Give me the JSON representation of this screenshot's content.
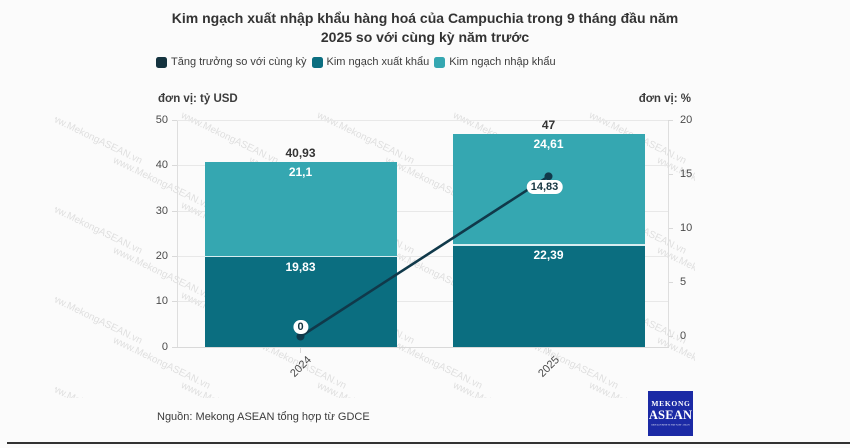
{
  "title": "Kim ngạch xuất nhập khẩu hàng hoá của Campuchia trong 9 tháng đầu năm 2025 so với cùng kỳ năm trước",
  "legend": {
    "items": [
      {
        "label": "Tăng trưởng so với cùng kỳ",
        "color": "#14333f"
      },
      {
        "label": "Kim ngạch xuất khẩu",
        "color": "#0b6e80"
      },
      {
        "label": "Kim ngạch nhập khẩu",
        "color": "#35a7b1"
      }
    ]
  },
  "axes": {
    "left_caption": "đơn vị: tỷ USD",
    "right_caption": "đơn vị: %",
    "left_ticks": [
      0,
      10,
      20,
      30,
      40,
      50
    ],
    "right_ticks": [
      0,
      5,
      10,
      15,
      20
    ]
  },
  "chart_data": {
    "type": "bar",
    "subtype": "stacked-bar-with-line",
    "title": "Kim ngạch xuất nhập khẩu hàng hoá của Campuchia trong 9 tháng đầu năm 2025 so với cùng kỳ năm trước",
    "categories": [
      "2024",
      "2025"
    ],
    "series": [
      {
        "name": "Kim ngạch xuất khẩu",
        "type": "bar",
        "axis": "left",
        "color": "#0b6e80",
        "values": [
          19.83,
          22.39
        ],
        "labels": [
          "19,83",
          "22,39"
        ]
      },
      {
        "name": "Kim ngạch nhập khẩu",
        "type": "bar",
        "axis": "left",
        "color": "#35a7b1",
        "values": [
          21.1,
          24.61
        ],
        "labels": [
          "21,1",
          "24,61"
        ]
      },
      {
        "name": "Tăng trưởng so với cùng kỳ",
        "type": "line",
        "axis": "right",
        "color": "#10394a",
        "values": [
          0,
          14.83
        ],
        "labels": [
          "0",
          "14,83"
        ]
      }
    ],
    "totals": {
      "values": [
        40.93,
        47
      ],
      "labels": [
        "40,93",
        "47"
      ]
    },
    "xlabel": "",
    "ylabel_left": "đơn vị: tỷ USD",
    "ylabel_right": "đơn vị: %",
    "ylim_left": [
      0,
      50
    ],
    "ylim_right": [
      0,
      20
    ],
    "grid": "horizontal",
    "legend_position": "top-left"
  },
  "watermark": {
    "text": "www.MekongASEAN.vn"
  },
  "footer": {
    "source": "Nguồn: Mekong ASEAN tổng hợp từ GDCE"
  },
  "logo": {
    "line1": "MEKONG",
    "line2": "ASEAN",
    "tagline": "DIỄN ĐÀN KINH TẾ VIỆT NAM - ASEAN",
    "color": "#1b2aa5"
  }
}
